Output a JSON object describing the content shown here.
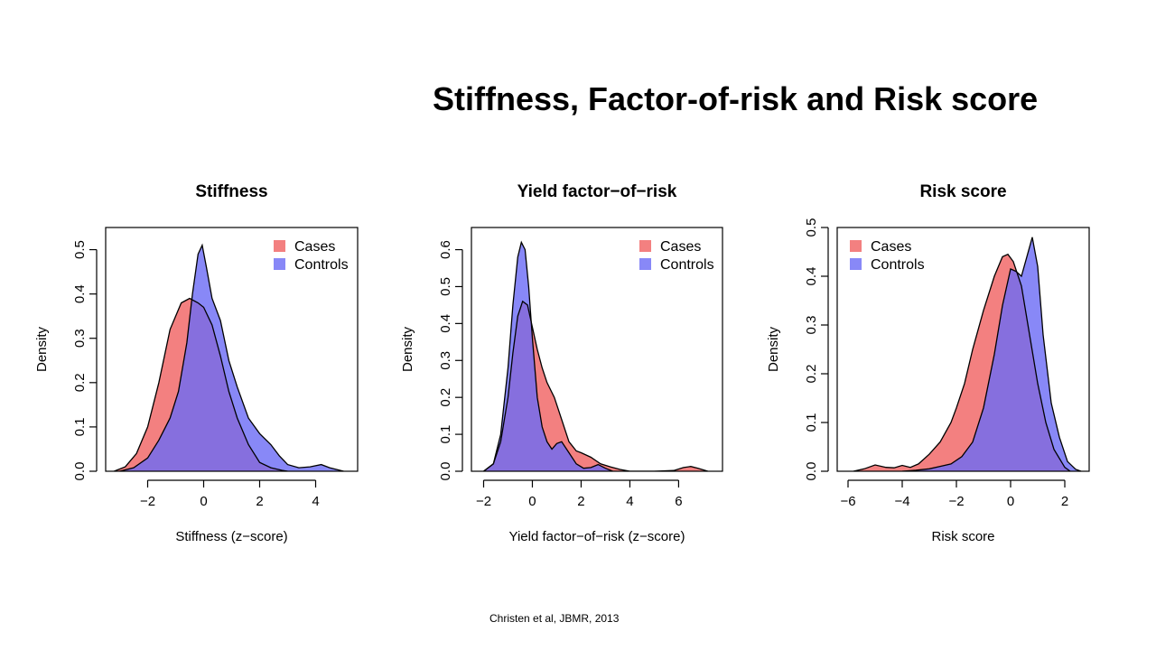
{
  "slide": {
    "title": "Stiffness, Factor-of-risk and Risk score",
    "citation": "Christen et al, JBMR,  2013"
  },
  "colors": {
    "cases": "#f06060",
    "controls": "#6a6af5",
    "overlap": "#7f3fbf"
  },
  "chart_data": [
    {
      "type": "area",
      "title": "Stiffness",
      "xlabel": "Stiffness (z−score)",
      "ylabel": "Density",
      "xlim": [
        -3.5,
        5.5
      ],
      "ylim": [
        0,
        0.55
      ],
      "xticks": [
        -2,
        0,
        2,
        4
      ],
      "xtick_labels": [
        "−2",
        "0",
        "2",
        "4"
      ],
      "yticks": [
        0,
        0.1,
        0.2,
        0.3,
        0.4,
        0.5
      ],
      "ytick_labels": [
        "0.0",
        "0.1",
        "0.2",
        "0.3",
        "0.4",
        "0.5"
      ],
      "legend_position": "top-right",
      "legend": [
        "Cases",
        "Controls"
      ],
      "series": [
        {
          "name": "Cases",
          "x": [
            -3.2,
            -2.8,
            -2.4,
            -2.0,
            -1.6,
            -1.2,
            -0.8,
            -0.5,
            -0.2,
            0.0,
            0.3,
            0.6,
            0.9,
            1.2,
            1.6,
            2.0,
            2.4,
            2.8,
            3.0
          ],
          "y": [
            0.0,
            0.01,
            0.04,
            0.1,
            0.2,
            0.32,
            0.38,
            0.39,
            0.38,
            0.37,
            0.33,
            0.26,
            0.18,
            0.12,
            0.06,
            0.02,
            0.008,
            0.002,
            0.0
          ]
        },
        {
          "name": "Controls",
          "x": [
            -3.0,
            -2.5,
            -2.0,
            -1.6,
            -1.2,
            -0.9,
            -0.6,
            -0.4,
            -0.2,
            -0.05,
            0.1,
            0.3,
            0.6,
            0.9,
            1.2,
            1.6,
            2.0,
            2.4,
            2.7,
            3.0,
            3.4,
            3.8,
            4.2,
            4.5,
            5.0
          ],
          "y": [
            0.0,
            0.008,
            0.03,
            0.07,
            0.12,
            0.18,
            0.29,
            0.4,
            0.49,
            0.51,
            0.46,
            0.39,
            0.34,
            0.25,
            0.19,
            0.12,
            0.085,
            0.06,
            0.035,
            0.015,
            0.008,
            0.01,
            0.015,
            0.008,
            0.0
          ]
        }
      ]
    },
    {
      "type": "area",
      "title": "Yield factor−of−risk",
      "xlabel": "Yield factor−of−risk (z−score)",
      "ylabel": "Density",
      "xlim": [
        -2.5,
        7.8
      ],
      "ylim": [
        0,
        0.66
      ],
      "xticks": [
        -2,
        0,
        2,
        4,
        6
      ],
      "xtick_labels": [
        "−2",
        "0",
        "2",
        "4",
        "6"
      ],
      "yticks": [
        0,
        0.1,
        0.2,
        0.3,
        0.4,
        0.5,
        0.6
      ],
      "ytick_labels": [
        "0.0",
        "0.1",
        "0.2",
        "0.3",
        "0.4",
        "0.5",
        "0.6"
      ],
      "legend_position": "top-right",
      "legend": [
        "Cases",
        "Controls"
      ],
      "series": [
        {
          "name": "Cases",
          "x": [
            -2.0,
            -1.6,
            -1.3,
            -1.0,
            -0.8,
            -0.6,
            -0.4,
            -0.2,
            0.0,
            0.2,
            0.4,
            0.6,
            0.9,
            1.2,
            1.5,
            1.8,
            2.0,
            2.4,
            2.8,
            3.2,
            3.6,
            4.0,
            5.0,
            5.8,
            6.2,
            6.5,
            6.8,
            7.2
          ],
          "y": [
            0.0,
            0.02,
            0.08,
            0.2,
            0.32,
            0.42,
            0.46,
            0.45,
            0.39,
            0.33,
            0.28,
            0.24,
            0.2,
            0.14,
            0.08,
            0.055,
            0.05,
            0.038,
            0.02,
            0.012,
            0.005,
            0.0,
            0.0,
            0.002,
            0.01,
            0.013,
            0.008,
            0.0
          ]
        },
        {
          "name": "Controls",
          "x": [
            -2.0,
            -1.6,
            -1.3,
            -1.0,
            -0.8,
            -0.6,
            -0.45,
            -0.3,
            -0.15,
            0.0,
            0.2,
            0.4,
            0.6,
            0.8,
            1.0,
            1.2,
            1.5,
            1.8,
            2.1,
            2.4,
            2.7,
            3.0,
            3.3
          ],
          "y": [
            0.0,
            0.02,
            0.1,
            0.28,
            0.45,
            0.58,
            0.62,
            0.6,
            0.5,
            0.36,
            0.2,
            0.12,
            0.08,
            0.06,
            0.075,
            0.08,
            0.05,
            0.02,
            0.008,
            0.01,
            0.018,
            0.008,
            0.0
          ]
        }
      ]
    },
    {
      "type": "area",
      "title": "Risk score",
      "xlabel": "Risk score",
      "ylabel": "Density",
      "xlim": [
        -6.4,
        2.9
      ],
      "ylim": [
        0,
        0.5
      ],
      "xticks": [
        -6,
        -4,
        -2,
        0,
        2
      ],
      "xtick_labels": [
        "−6",
        "−4",
        "−2",
        "0",
        "2"
      ],
      "yticks": [
        0,
        0.1,
        0.2,
        0.3,
        0.4,
        0.5
      ],
      "ytick_labels": [
        "0.0",
        "0.1",
        "0.2",
        "0.3",
        "0.4",
        "0.5"
      ],
      "legend_position": "top-left",
      "legend": [
        "Cases",
        "Controls"
      ],
      "series": [
        {
          "name": "Cases",
          "x": [
            -5.8,
            -5.4,
            -5.0,
            -4.6,
            -4.3,
            -4.0,
            -3.7,
            -3.4,
            -3.0,
            -2.6,
            -2.2,
            -2.0,
            -1.7,
            -1.4,
            -1.0,
            -0.6,
            -0.3,
            -0.1,
            0.1,
            0.4,
            0.7,
            1.0,
            1.3,
            1.6,
            2.0,
            2.2
          ],
          "y": [
            0.0,
            0.005,
            0.013,
            0.008,
            0.007,
            0.012,
            0.008,
            0.015,
            0.035,
            0.06,
            0.1,
            0.13,
            0.18,
            0.25,
            0.33,
            0.4,
            0.44,
            0.445,
            0.43,
            0.38,
            0.28,
            0.18,
            0.1,
            0.045,
            0.008,
            0.0
          ]
        },
        {
          "name": "Controls",
          "x": [
            -4.0,
            -3.5,
            -3.0,
            -2.6,
            -2.2,
            -1.8,
            -1.4,
            -1.0,
            -0.6,
            -0.3,
            0.0,
            0.2,
            0.4,
            0.6,
            0.8,
            1.0,
            1.2,
            1.5,
            1.8,
            2.1,
            2.4,
            2.6
          ],
          "y": [
            0.0,
            0.002,
            0.005,
            0.01,
            0.015,
            0.03,
            0.06,
            0.13,
            0.24,
            0.34,
            0.415,
            0.41,
            0.4,
            0.44,
            0.48,
            0.42,
            0.28,
            0.14,
            0.07,
            0.02,
            0.004,
            0.0
          ]
        }
      ]
    }
  ]
}
